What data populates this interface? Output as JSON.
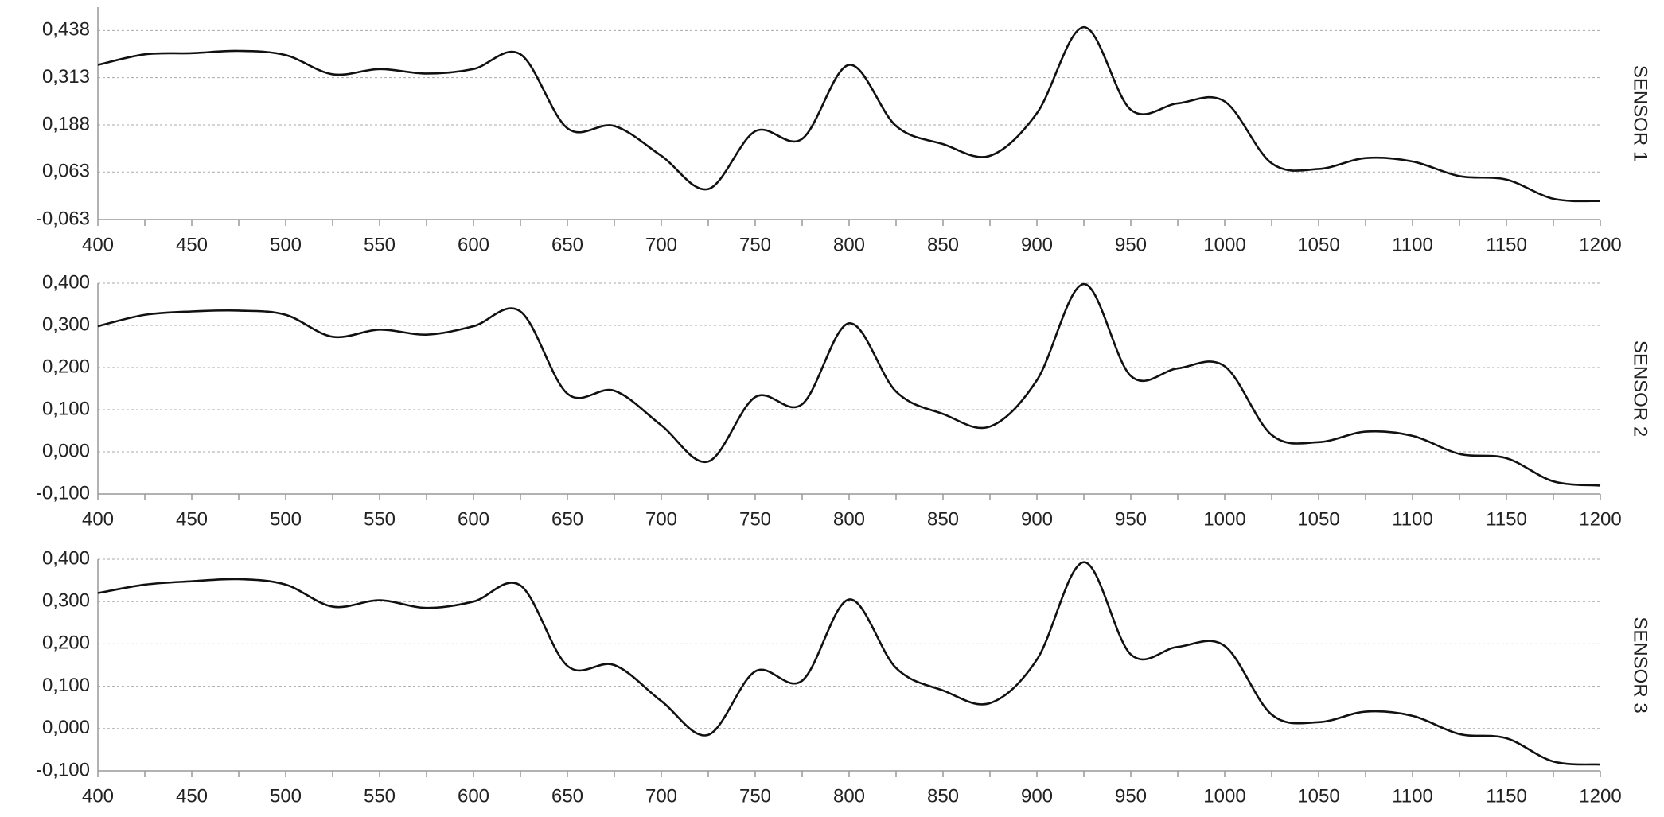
{
  "chart_data": [
    {
      "type": "line",
      "title": "SENSOR 1",
      "x": [
        400,
        425,
        450,
        475,
        500,
        525,
        550,
        575,
        600,
        625,
        650,
        675,
        700,
        725,
        750,
        775,
        800,
        825,
        850,
        875,
        900,
        925,
        950,
        975,
        1000,
        1025,
        1050,
        1075,
        1100,
        1125,
        1150,
        1175,
        1200
      ],
      "series": [
        {
          "color": "#111111",
          "values": [
            0.347,
            0.375,
            0.378,
            0.384,
            0.373,
            0.322,
            0.336,
            0.324,
            0.336,
            0.375,
            0.179,
            0.185,
            0.106,
            0.018,
            0.171,
            0.151,
            0.347,
            0.185,
            0.137,
            0.106,
            0.219,
            0.447,
            0.228,
            0.245,
            0.25,
            0.086,
            0.071,
            0.1,
            0.091,
            0.052,
            0.043,
            -0.008,
            -0.014
          ]
        }
      ],
      "xlim": [
        400,
        1200
      ],
      "xticks": [
        400,
        450,
        500,
        550,
        600,
        650,
        700,
        750,
        800,
        850,
        900,
        950,
        1000,
        1050,
        1100,
        1150,
        1200
      ],
      "ylim": [
        -0.063,
        0.5
      ],
      "yticks": [
        {
          "value": -0.063,
          "label": "-0,063"
        },
        {
          "value": 0.063,
          "label": "0,063"
        },
        {
          "value": 0.188,
          "label": "0,188"
        },
        {
          "value": 0.313,
          "label": "0,313"
        },
        {
          "value": 0.438,
          "label": "0,438"
        }
      ],
      "grid": true
    },
    {
      "type": "line",
      "title": "SENSOR 2",
      "x": [
        400,
        425,
        450,
        475,
        500,
        525,
        550,
        575,
        600,
        625,
        650,
        675,
        700,
        725,
        750,
        775,
        800,
        825,
        850,
        875,
        900,
        925,
        950,
        975,
        1000,
        1025,
        1050,
        1075,
        1100,
        1125,
        1150,
        1175,
        1200
      ],
      "series": [
        {
          "color": "#111111",
          "values": [
            0.298,
            0.325,
            0.333,
            0.335,
            0.325,
            0.273,
            0.29,
            0.278,
            0.298,
            0.333,
            0.138,
            0.145,
            0.063,
            -0.023,
            0.13,
            0.113,
            0.305,
            0.143,
            0.09,
            0.06,
            0.17,
            0.398,
            0.18,
            0.198,
            0.203,
            0.04,
            0.023,
            0.048,
            0.038,
            -0.005,
            -0.015,
            -0.07,
            -0.08
          ]
        }
      ],
      "xlim": [
        400,
        1200
      ],
      "xticks": [
        400,
        450,
        500,
        550,
        600,
        650,
        700,
        750,
        800,
        850,
        900,
        950,
        1000,
        1050,
        1100,
        1150,
        1200
      ],
      "ylim": [
        -0.1,
        0.4
      ],
      "yticks": [
        {
          "value": -0.1,
          "label": "-0,100"
        },
        {
          "value": 0,
          "label": "0,000"
        },
        {
          "value": 0.1,
          "label": "0,100"
        },
        {
          "value": 0.2,
          "label": "0,200"
        },
        {
          "value": 0.3,
          "label": "0,300"
        },
        {
          "value": 0.4,
          "label": "0,400"
        }
      ],
      "grid": true
    },
    {
      "type": "line",
      "title": "SENSOR 3",
      "x": [
        400,
        425,
        450,
        475,
        500,
        525,
        550,
        575,
        600,
        625,
        650,
        675,
        700,
        725,
        750,
        775,
        800,
        825,
        850,
        875,
        900,
        925,
        950,
        975,
        1000,
        1025,
        1050,
        1075,
        1100,
        1125,
        1150,
        1175,
        1200
      ],
      "series": [
        {
          "color": "#111111",
          "values": [
            0.32,
            0.34,
            0.348,
            0.353,
            0.34,
            0.288,
            0.303,
            0.285,
            0.3,
            0.338,
            0.148,
            0.15,
            0.065,
            -0.015,
            0.135,
            0.113,
            0.305,
            0.143,
            0.09,
            0.06,
            0.163,
            0.393,
            0.175,
            0.193,
            0.195,
            0.033,
            0.015,
            0.04,
            0.03,
            -0.013,
            -0.023,
            -0.078,
            -0.085
          ]
        }
      ],
      "xlim": [
        400,
        1200
      ],
      "xticks": [
        400,
        450,
        500,
        550,
        600,
        650,
        700,
        750,
        800,
        850,
        900,
        950,
        1000,
        1050,
        1100,
        1150,
        1200
      ],
      "ylim": [
        -0.1,
        0.4
      ],
      "yticks": [
        {
          "value": -0.1,
          "label": "-0,100"
        },
        {
          "value": 0,
          "label": "0,000"
        },
        {
          "value": 0.1,
          "label": "0,100"
        },
        {
          "value": 0.2,
          "label": "0,200"
        },
        {
          "value": 0.3,
          "label": "0,300"
        },
        {
          "value": 0.4,
          "label": "0,400"
        }
      ],
      "grid": true
    }
  ]
}
